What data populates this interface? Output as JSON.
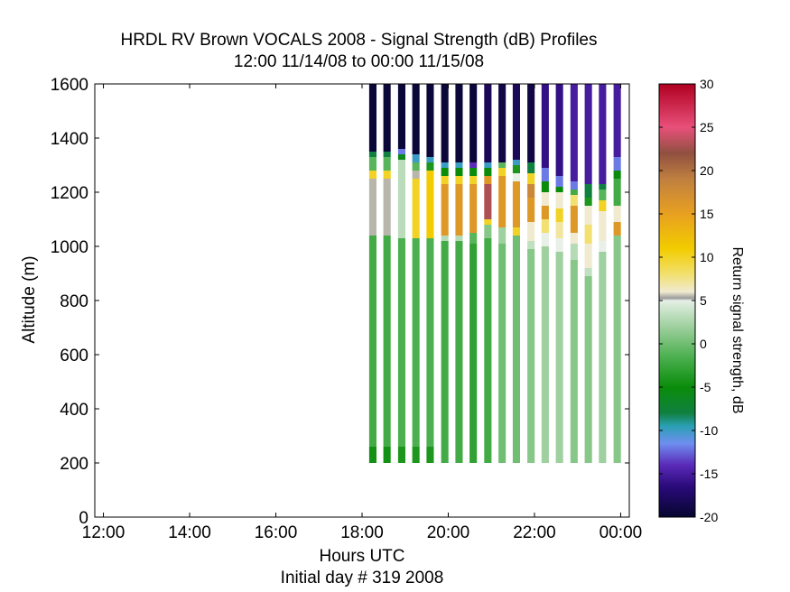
{
  "chart_data": {
    "type": "heatmap",
    "title": "HRDL RV Brown VOCALS 2008 - Signal Strength (dB) Profiles",
    "subtitle": "12:00 11/14/08 to 00:00 11/15/08",
    "xlabel": "Hours UTC",
    "xlabel2": "Initial day # 319  2008",
    "ylabel": "Altitude (m)",
    "colorbar_label": "Return signal strength, dB",
    "xlim": [
      11.8,
      24.2
    ],
    "ylim": [
      0,
      1600
    ],
    "x_ticks": [
      12,
      14,
      16,
      18,
      20,
      22,
      24
    ],
    "x_tick_labels": [
      "12:00",
      "14:00",
      "16:00",
      "18:00",
      "20:00",
      "22:00",
      "00:00"
    ],
    "y_ticks": [
      0,
      200,
      400,
      600,
      800,
      1000,
      1200,
      1400,
      1600
    ],
    "y_tick_labels": [
      "0",
      "200",
      "400",
      "600",
      "800",
      "1000",
      "1200",
      "1400",
      "1600"
    ],
    "color_range": [
      -20,
      30
    ],
    "colorbar_ticks": [
      -20,
      -15,
      -10,
      -5,
      0,
      5,
      10,
      15,
      20,
      25,
      30
    ],
    "colorbar_tick_labels": [
      "-20",
      "-15",
      "-10",
      "-5",
      "0",
      "5",
      "10",
      "15",
      "20",
      "25",
      "30"
    ],
    "profile_start_altitude": 200,
    "profile_top_altitude": 1600,
    "profile_bin_height": 50,
    "profile_width_hours": 0.17,
    "profile_times": [
      18.25,
      18.58,
      18.92,
      19.25,
      19.58,
      19.92,
      20.25,
      20.58,
      20.92,
      21.25,
      21.58,
      21.92,
      22.25,
      22.58,
      22.92,
      23.25,
      23.58,
      23.92
    ],
    "profiles": [
      {
        "time": 18.25,
        "segments": [
          [
            200,
            260,
            -4.5
          ],
          [
            260,
            1040,
            -2
          ],
          [
            1040,
            1250,
            5.5
          ],
          [
            1250,
            1280,
            10
          ],
          [
            1280,
            1330,
            -1
          ],
          [
            1330,
            1350,
            -8
          ],
          [
            1350,
            1600,
            -19.5
          ]
        ]
      },
      {
        "time": 18.58,
        "segments": [
          [
            200,
            260,
            -4.5
          ],
          [
            260,
            1040,
            -2
          ],
          [
            1040,
            1250,
            5.5
          ],
          [
            1250,
            1280,
            10
          ],
          [
            1280,
            1330,
            -1
          ],
          [
            1330,
            1350,
            -8
          ],
          [
            1350,
            1600,
            -19.5
          ]
        ]
      },
      {
        "time": 18.92,
        "segments": [
          [
            200,
            260,
            -4
          ],
          [
            260,
            1030,
            -1.5
          ],
          [
            1030,
            1320,
            3.2
          ],
          [
            1320,
            1340,
            -6
          ],
          [
            1340,
            1360,
            -12
          ],
          [
            1360,
            1600,
            -19.5
          ]
        ]
      },
      {
        "time": 19.25,
        "segments": [
          [
            200,
            260,
            -4
          ],
          [
            260,
            1030,
            -1.5
          ],
          [
            1030,
            1250,
            10
          ],
          [
            1250,
            1280,
            5.5
          ],
          [
            1280,
            1310,
            -1
          ],
          [
            1310,
            1340,
            -10
          ],
          [
            1340,
            1600,
            -19.5
          ]
        ]
      },
      {
        "time": 19.58,
        "segments": [
          [
            200,
            260,
            -4
          ],
          [
            260,
            1030,
            -1.5
          ],
          [
            1030,
            1280,
            11
          ],
          [
            1280,
            1310,
            -4
          ],
          [
            1310,
            1330,
            -10
          ],
          [
            1330,
            1600,
            -19.5
          ]
        ]
      },
      {
        "time": 19.92,
        "segments": [
          [
            200,
            1020,
            -2
          ],
          [
            1020,
            1040,
            3
          ],
          [
            1040,
            1230,
            16
          ],
          [
            1230,
            1260,
            10
          ],
          [
            1260,
            1290,
            -5
          ],
          [
            1290,
            1310,
            -10
          ],
          [
            1310,
            1600,
            -19.5
          ]
        ]
      },
      {
        "time": 20.25,
        "segments": [
          [
            200,
            1020,
            -2
          ],
          [
            1020,
            1040,
            3
          ],
          [
            1040,
            1230,
            16
          ],
          [
            1230,
            1260,
            10
          ],
          [
            1260,
            1290,
            -5
          ],
          [
            1290,
            1310,
            -10
          ],
          [
            1310,
            1600,
            -19.5
          ]
        ]
      },
      {
        "time": 20.58,
        "segments": [
          [
            200,
            1010,
            -3
          ],
          [
            1010,
            1050,
            -1
          ],
          [
            1050,
            1230,
            16
          ],
          [
            1230,
            1260,
            10
          ],
          [
            1260,
            1290,
            -5
          ],
          [
            1290,
            1310,
            -14
          ],
          [
            1310,
            1600,
            -19.5
          ]
        ]
      },
      {
        "time": 20.92,
        "segments": [
          [
            200,
            1030,
            -2
          ],
          [
            1030,
            1080,
            1
          ],
          [
            1080,
            1100,
            10
          ],
          [
            1100,
            1230,
            23
          ],
          [
            1230,
            1260,
            16
          ],
          [
            1260,
            1290,
            -5
          ],
          [
            1290,
            1310,
            -10
          ],
          [
            1310,
            1600,
            -18
          ]
        ]
      },
      {
        "time": 21.25,
        "segments": [
          [
            200,
            1010,
            0
          ],
          [
            1010,
            1070,
            2
          ],
          [
            1070,
            1260,
            16
          ],
          [
            1260,
            1290,
            10
          ],
          [
            1290,
            1310,
            -1
          ],
          [
            1310,
            1600,
            -19
          ]
        ]
      },
      {
        "time": 21.58,
        "segments": [
          [
            200,
            1040,
            0
          ],
          [
            1040,
            1070,
            10
          ],
          [
            1070,
            1240,
            16
          ],
          [
            1240,
            1270,
            5
          ],
          [
            1270,
            1300,
            -4
          ],
          [
            1300,
            1320,
            -10
          ],
          [
            1320,
            1600,
            -18
          ]
        ]
      },
      {
        "time": 21.92,
        "segments": [
          [
            200,
            990,
            1
          ],
          [
            990,
            1020,
            3.5
          ],
          [
            1020,
            1090,
            6
          ],
          [
            1090,
            1180,
            16
          ],
          [
            1180,
            1230,
            18
          ],
          [
            1230,
            1270,
            10
          ],
          [
            1270,
            1310,
            -8
          ],
          [
            1310,
            1600,
            -19
          ]
        ]
      },
      {
        "time": 22.25,
        "segments": [
          [
            200,
            1000,
            2
          ],
          [
            1000,
            1050,
            5
          ],
          [
            1050,
            1100,
            8
          ],
          [
            1100,
            1150,
            16
          ],
          [
            1150,
            1200,
            6
          ],
          [
            1200,
            1240,
            -5
          ],
          [
            1240,
            1290,
            -12
          ],
          [
            1290,
            1600,
            -16
          ]
        ]
      },
      {
        "time": 22.58,
        "segments": [
          [
            200,
            980,
            2
          ],
          [
            980,
            1030,
            5
          ],
          [
            1030,
            1090,
            7
          ],
          [
            1090,
            1140,
            10
          ],
          [
            1140,
            1200,
            6
          ],
          [
            1200,
            1220,
            -5
          ],
          [
            1220,
            1260,
            -12
          ],
          [
            1260,
            1600,
            -16
          ]
        ]
      },
      {
        "time": 22.92,
        "segments": [
          [
            200,
            950,
            1
          ],
          [
            950,
            1010,
            3
          ],
          [
            1010,
            1050,
            6
          ],
          [
            1050,
            1150,
            16
          ],
          [
            1150,
            1190,
            8
          ],
          [
            1190,
            1210,
            -2
          ],
          [
            1210,
            1240,
            -12
          ],
          [
            1240,
            1600,
            -15
          ]
        ]
      },
      {
        "time": 23.25,
        "segments": [
          [
            200,
            890,
            1
          ],
          [
            890,
            920,
            3.5
          ],
          [
            920,
            1010,
            6
          ],
          [
            1010,
            1080,
            8
          ],
          [
            1080,
            1150,
            6
          ],
          [
            1150,
            1180,
            -4
          ],
          [
            1180,
            1230,
            -8
          ],
          [
            1230,
            1600,
            -15
          ]
        ]
      },
      {
        "time": 23.58,
        "segments": [
          [
            200,
            980,
            2
          ],
          [
            980,
            1020,
            5
          ],
          [
            1020,
            1130,
            6
          ],
          [
            1130,
            1170,
            10
          ],
          [
            1170,
            1210,
            -1
          ],
          [
            1210,
            1230,
            -8
          ],
          [
            1230,
            1600,
            -15
          ]
        ]
      },
      {
        "time": 23.92,
        "segments": [
          [
            200,
            1040,
            1
          ],
          [
            1040,
            1090,
            16
          ],
          [
            1090,
            1150,
            6
          ],
          [
            1150,
            1200,
            -2
          ],
          [
            1200,
            1250,
            -2
          ],
          [
            1250,
            1280,
            -5
          ],
          [
            1280,
            1330,
            -12
          ],
          [
            1330,
            1600,
            -15
          ]
        ]
      }
    ]
  }
}
